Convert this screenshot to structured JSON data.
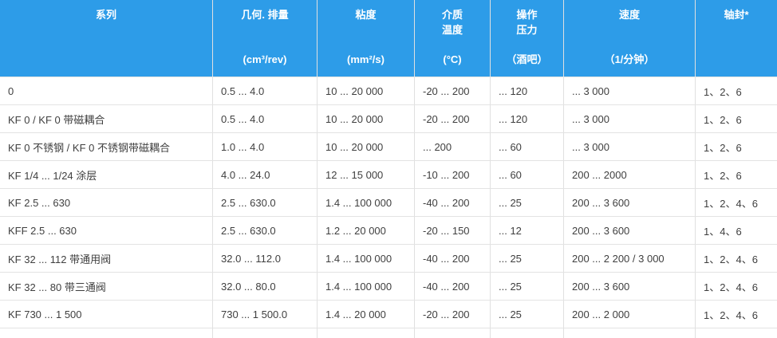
{
  "table": {
    "colors": {
      "header_bg": "#2D9CE8",
      "header_text": "#FFFFFF",
      "body_text": "#3F3F3F",
      "border": "#E0E0E0"
    },
    "columns": [
      {
        "label": "系列",
        "unit": ""
      },
      {
        "label": "几何. 排量",
        "unit": "(cm³/rev)"
      },
      {
        "label": "粘度",
        "unit": "(mm²/s)"
      },
      {
        "label": "介质\n温度",
        "unit": "(°C)"
      },
      {
        "label": "操作\n压力",
        "unit": "（酒吧）"
      },
      {
        "label": "速度",
        "unit": "（1/分钟）"
      },
      {
        "label": "轴封*",
        "unit": ""
      }
    ],
    "rows": [
      [
        "0",
        "0.5 ... 4.0",
        "10 ... 20 000",
        "-20 ... 200",
        "... 120",
        "... 3 000",
        "1、2、6"
      ],
      [
        "KF 0 / KF 0 带磁耦合",
        "0.5 ... 4.0",
        "10 ... 20 000",
        "-20 ... 200",
        "... 120",
        "... 3 000",
        "1、2、6"
      ],
      [
        "KF 0 不锈钢 / KF 0 不锈钢带磁耦合",
        "1.0 ... 4.0",
        "10 ... 20 000",
        "... 200",
        "... 60",
        "... 3 000",
        "1、2、6"
      ],
      [
        "KF 1/4 ... 1/24 涂层",
        "4.0 ... 24.0",
        "12 ... 15 000",
        "-10 ... 200",
        "... 60",
        "200 ... 2000",
        "1、2、6"
      ],
      [
        "KF 2.5 ... 630",
        "2.5 ... 630.0",
        "1.4 ... 100 000",
        "-40 ... 200",
        "... 25",
        "200 ... 3 600",
        "1、2、4、6"
      ],
      [
        "KFF 2.5 ... 630",
        "2.5 ... 630.0",
        "1.2 ... 20 000",
        "-20 ... 150",
        "... 12",
        "200 ... 3 600",
        "1、4、6"
      ],
      [
        "KF 32 ... 112 带通用阀",
        "32.0 ... 112.0",
        "1.4 ... 100 000",
        "-40 ... 200",
        "... 25",
        "200 ... 2 200 / 3 000",
        "1、2、4、6"
      ],
      [
        "KF 32 ... 80 带三通阀",
        "32.0 ... 80.0",
        "1.4 ... 100 000",
        "-40 ... 200",
        "... 25",
        "200 ... 3 600",
        "1、2、4、6"
      ],
      [
        "KF 730 ... 1 500",
        "730 ... 1 500.0",
        "1.4 ... 20 000",
        "-20 ... 200",
        "... 25",
        "200 ... 2 000",
        "1、2、4、6"
      ]
    ]
  }
}
